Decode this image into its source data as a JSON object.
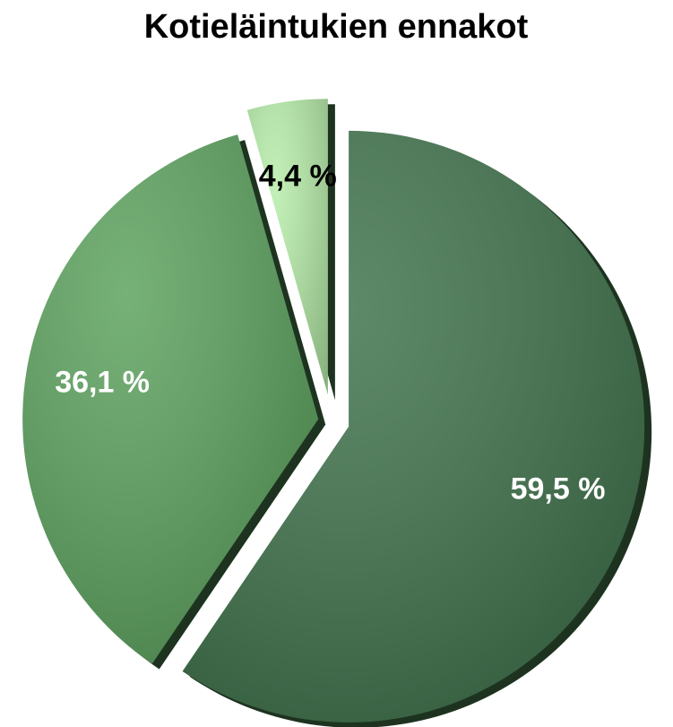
{
  "chart_data": {
    "type": "pie",
    "title": "Kotieläintukien ennakot",
    "values": [
      59.5,
      36.1,
      4.4
    ],
    "value_labels": [
      "59,5 %",
      "36,1 %",
      "4,4 %"
    ],
    "colors": [
      "#3b7048",
      "#58a05a",
      "#b6eda8"
    ],
    "label_colors": [
      "#ffffff",
      "#ffffff",
      "#000000"
    ]
  }
}
